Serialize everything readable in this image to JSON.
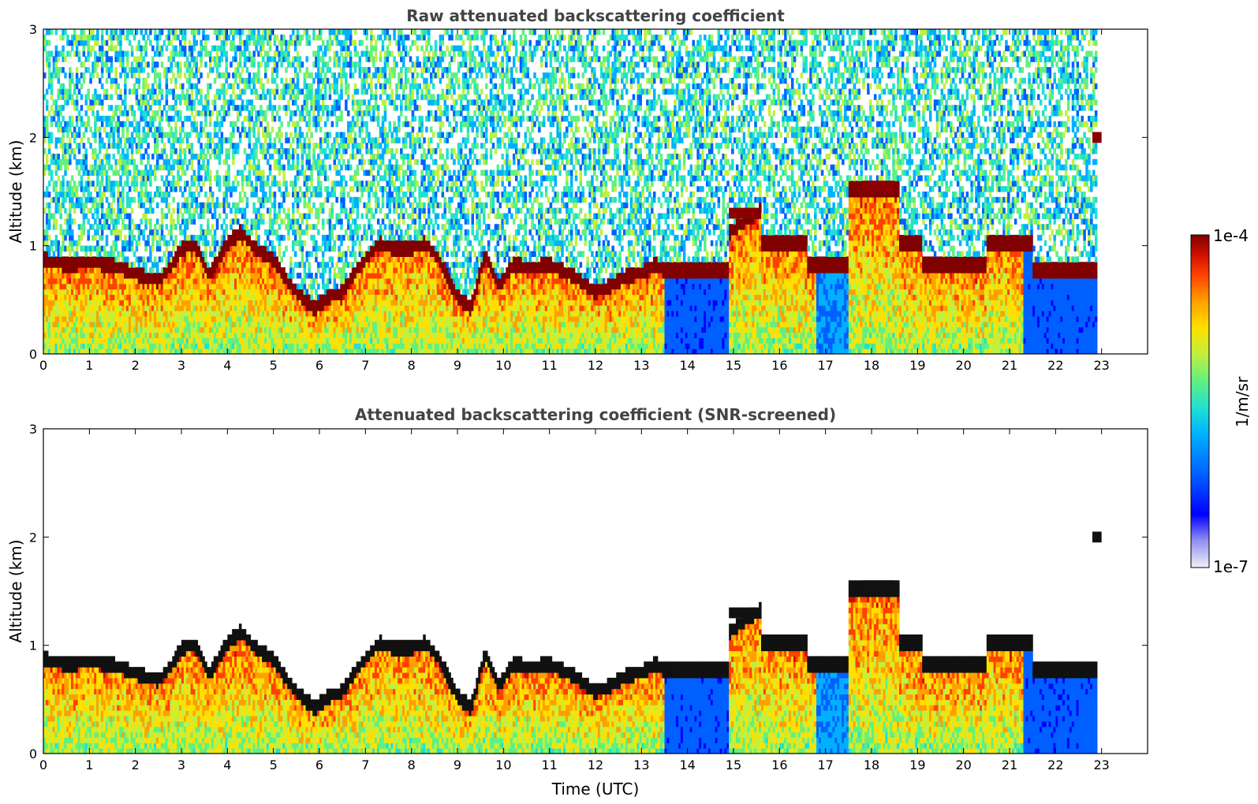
{
  "chart_data": [
    {
      "type": "heatmap",
      "title": "Raw attenuated backscattering coefficient",
      "xlabel": "",
      "ylabel": "Altitude (km)",
      "xlim": [
        0,
        24
      ],
      "ylim": [
        0,
        3
      ],
      "xticks": [
        "0",
        "1",
        "2",
        "3",
        "4",
        "5",
        "6",
        "7",
        "8",
        "9",
        "10",
        "11",
        "12",
        "13",
        "14",
        "15",
        "16",
        "17",
        "18",
        "19",
        "20",
        "21",
        "22",
        "23"
      ],
      "yticks": [
        "0",
        "1",
        "2",
        "3"
      ],
      "data_end_time": 22.9,
      "cloud_base_profile": {
        "time": [
          0,
          0.5,
          1,
          1.5,
          2,
          2.5,
          2.8,
          3.0,
          3.3,
          3.6,
          4.0,
          4.3,
          4.6,
          5.0,
          5.3,
          5.6,
          5.9,
          6.2,
          6.5,
          6.8,
          7.0,
          7.3,
          7.6,
          8.0,
          8.3,
          8.6,
          9.0,
          9.3,
          9.6,
          9.9,
          10.2,
          10.6,
          11.0,
          11.5,
          12.0,
          12.3,
          12.7,
          13.0,
          13.3,
          13.5
        ],
        "altitude_km": [
          0.85,
          0.8,
          0.82,
          0.8,
          0.72,
          0.65,
          0.8,
          0.95,
          0.98,
          0.7,
          1.0,
          1.1,
          0.95,
          0.85,
          0.65,
          0.5,
          0.4,
          0.5,
          0.55,
          0.75,
          0.85,
          1.0,
          0.95,
          0.95,
          1.0,
          0.85,
          0.5,
          0.4,
          0.9,
          0.6,
          0.8,
          0.78,
          0.8,
          0.7,
          0.55,
          0.6,
          0.7,
          0.72,
          0.8,
          0.75
        ]
      },
      "elevated_layers": [
        {
          "time_start": 17.8,
          "time_end": 18.5,
          "altitude_km": 1.55
        },
        {
          "time_start": 22.8,
          "time_end": 23.0,
          "altitude_km": 2.0
        },
        {
          "time_start": 14.9,
          "time_end": 15.5,
          "altitude_km": 1.3
        }
      ]
    },
    {
      "type": "heatmap",
      "title": "Attenuated backscattering coefficient (SNR-screened)",
      "xlabel": "Time (UTC)",
      "ylabel": "Altitude (km)",
      "xlim": [
        0,
        24
      ],
      "ylim": [
        0,
        3
      ],
      "xticks": [
        "0",
        "1",
        "2",
        "3",
        "4",
        "5",
        "6",
        "7",
        "8",
        "9",
        "10",
        "11",
        "12",
        "13",
        "14",
        "15",
        "16",
        "17",
        "18",
        "19",
        "20",
        "21",
        "22",
        "23"
      ],
      "yticks": [
        "0",
        "1",
        "2",
        "3"
      ],
      "data_end_time": 22.9
    }
  ],
  "colorbar": {
    "label": "1/m/sr",
    "max_label": "1e-4",
    "min_label": "1e-7",
    "scale": "log",
    "range": [
      1e-07,
      0.0001
    ],
    "colormap": [
      "#f0f0f8",
      "#9090f0",
      "#0000ff",
      "#0060ff",
      "#00b0ff",
      "#20e0d0",
      "#60f080",
      "#c0f040",
      "#ffe000",
      "#ffa000",
      "#ff4000",
      "#d01000",
      "#800000"
    ]
  },
  "colors": {
    "cloud_layer_raw": "#8b0000",
    "cloud_layer_screened": "#111111",
    "background": "#ffffff"
  }
}
